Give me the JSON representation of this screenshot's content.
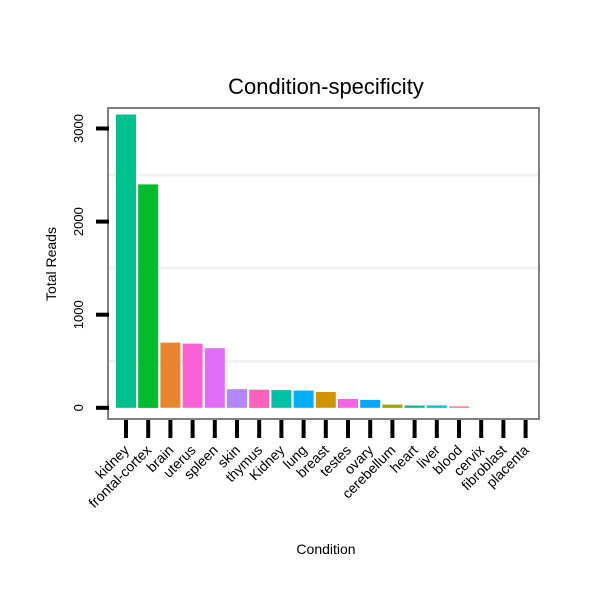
{
  "chart_data": {
    "type": "bar",
    "title": "Condition-specificity",
    "xlabel": "Condition",
    "ylabel": "Total Reads",
    "ylim": [
      -120,
      3220
    ],
    "yticks": [
      0,
      1000,
      2000,
      3000
    ],
    "grid": true,
    "categories": [
      "kidney",
      "frontal-cortex",
      "brain",
      "uterus",
      "spleen",
      "skin",
      "thymus",
      "Kidney",
      "lung",
      "breast",
      "testes",
      "ovary",
      "cerebellum",
      "heart",
      "liver",
      "blood",
      "cervix",
      "fibroblast",
      "placenta"
    ],
    "values": [
      3150,
      2400,
      700,
      690,
      640,
      200,
      195,
      190,
      185,
      170,
      95,
      85,
      35,
      25,
      25,
      15,
      0,
      0,
      0
    ],
    "colors": [
      "#00c08b",
      "#00bc2e",
      "#e7862a",
      "#fb61d7",
      "#e06cf8",
      "#b385ff",
      "#ff62bc",
      "#00c1a3",
      "#00b0f6",
      "#cf9400",
      "#f564e3",
      "#00a9ff",
      "#9ca700",
      "#00bf7d",
      "#00bcd6",
      "#f8766d",
      "#7cae00",
      "#b79f00",
      "#d39200"
    ]
  }
}
